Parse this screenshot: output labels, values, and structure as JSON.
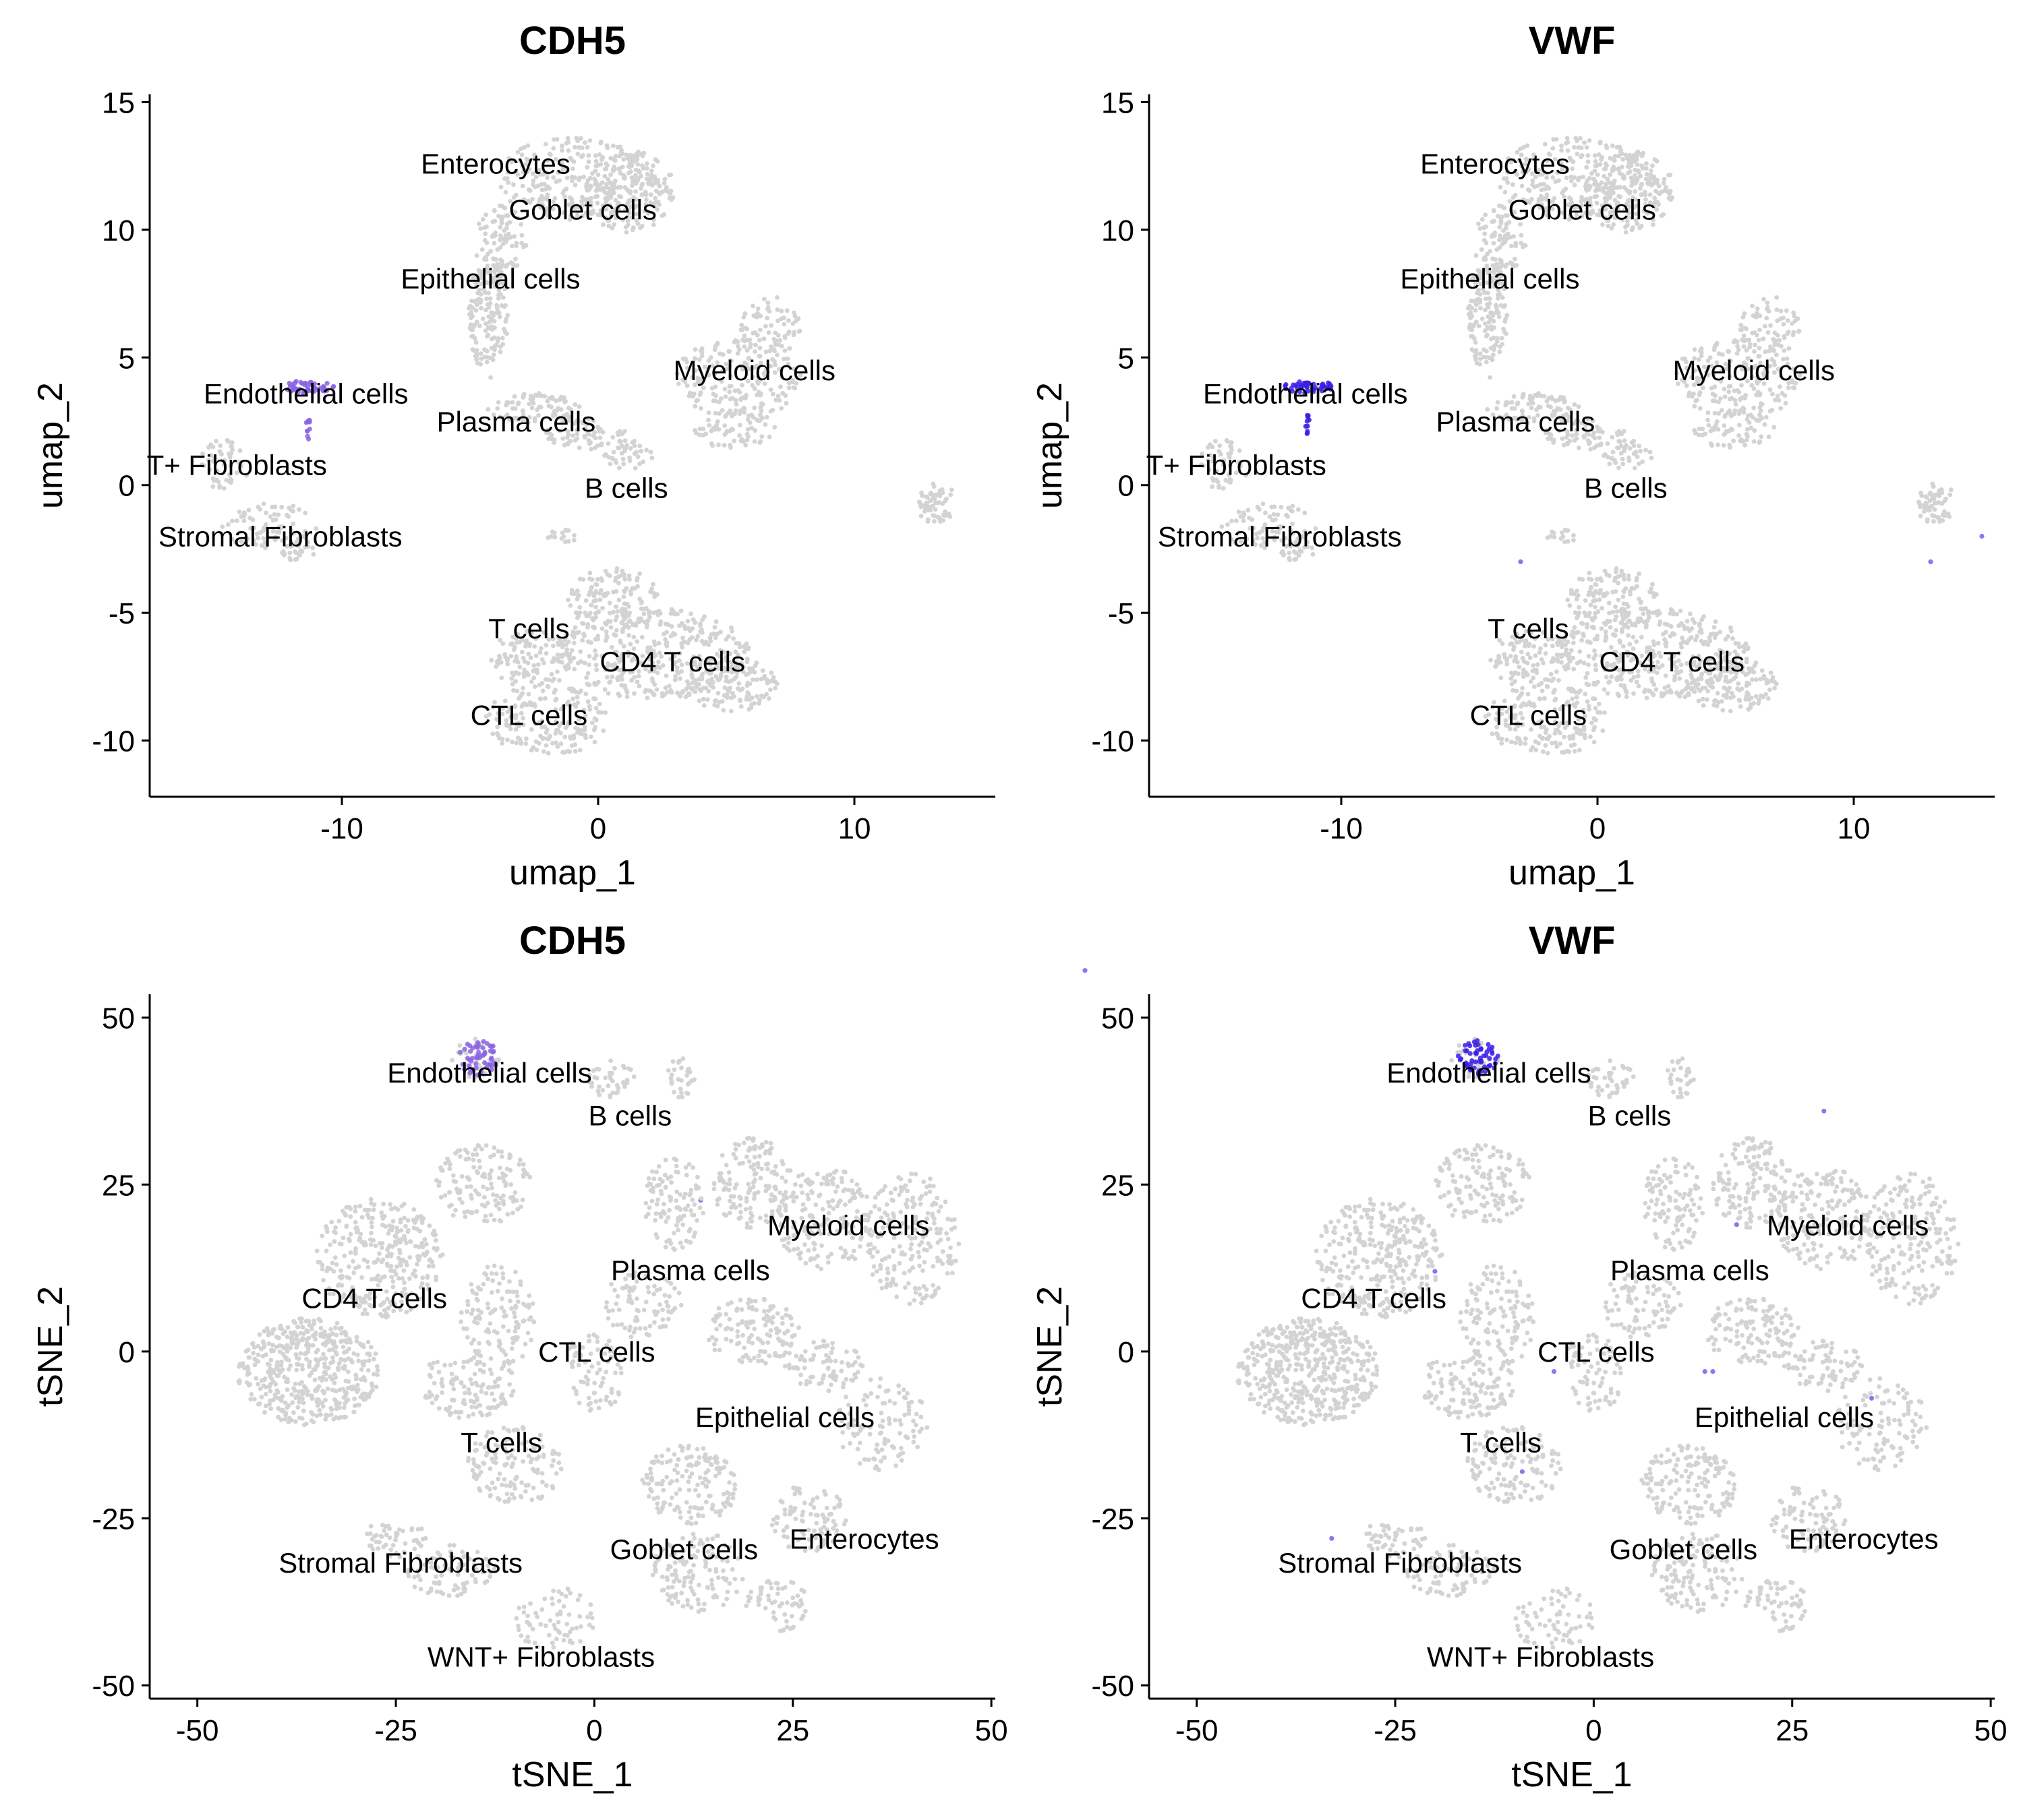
{
  "chart_data": [
    {
      "type": "scatter",
      "title": "CDH5",
      "xlabel": "umap_1",
      "ylabel": "umap_2",
      "xlim": [
        -17.5,
        15.5
      ],
      "ylim": [
        -12.2,
        15.3
      ],
      "xticks": [
        -10,
        0,
        10
      ],
      "yticks": [
        -10,
        -5,
        0,
        5,
        10,
        15
      ],
      "xtick_labels": [
        "-10",
        "0",
        "10"
      ],
      "ytick_labels": [
        "-10",
        "-5",
        "0",
        "5",
        "10",
        "15"
      ],
      "labels": [
        {
          "text": "Enterocytes",
          "x": -4.0,
          "y": 12.6
        },
        {
          "text": "Goblet cells",
          "x": -0.6,
          "y": 10.8
        },
        {
          "text": "Epithelial cells",
          "x": -4.2,
          "y": 8.1
        },
        {
          "text": "Myeloid cells",
          "x": 6.1,
          "y": 4.5
        },
        {
          "text": "Endothelial cells",
          "x": -11.4,
          "y": 3.6
        },
        {
          "text": "Plasma cells",
          "x": -3.2,
          "y": 2.5
        },
        {
          "text": "T+ Fibroblasts",
          "x": -14.1,
          "y": 0.8
        },
        {
          "text": "B cells",
          "x": 1.1,
          "y": -0.1
        },
        {
          "text": "Stromal Fibroblasts",
          "x": -12.4,
          "y": -2.0
        },
        {
          "text": "T cells",
          "x": -2.7,
          "y": -5.6
        },
        {
          "text": "CD4 T cells",
          "x": 2.9,
          "y": -6.9
        },
        {
          "text": "CTL cells",
          "x": -2.7,
          "y": -9.0
        }
      ],
      "expression": {
        "marker_cluster": "Endothelial cells",
        "highlight_color": "#8a63e3",
        "background_color": "#d3d3d3"
      }
    },
    {
      "type": "scatter",
      "title": "VWF",
      "xlabel": "umap_1",
      "ylabel": "umap_2",
      "xlim": [
        -17.5,
        15.5
      ],
      "ylim": [
        -12.2,
        15.3
      ],
      "xticks": [
        -10,
        0,
        10
      ],
      "yticks": [
        -10,
        -5,
        0,
        5,
        10,
        15
      ],
      "xtick_labels": [
        "-10",
        "0",
        "10"
      ],
      "ytick_labels": [
        "-10",
        "-5",
        "0",
        "5",
        "10",
        "15"
      ],
      "labels": [
        {
          "text": "Enterocytes",
          "x": -4.0,
          "y": 12.6
        },
        {
          "text": "Goblet cells",
          "x": -0.6,
          "y": 10.8
        },
        {
          "text": "Epithelial cells",
          "x": -4.2,
          "y": 8.1
        },
        {
          "text": "Myeloid cells",
          "x": 6.1,
          "y": 4.5
        },
        {
          "text": "Endothelial cells",
          "x": -11.4,
          "y": 3.6
        },
        {
          "text": "Plasma cells",
          "x": -3.2,
          "y": 2.5
        },
        {
          "text": "T+ Fibroblasts",
          "x": -14.1,
          "y": 0.8
        },
        {
          "text": "B cells",
          "x": 1.1,
          "y": -0.1
        },
        {
          "text": "Stromal Fibroblasts",
          "x": -12.4,
          "y": -2.0
        },
        {
          "text": "T cells",
          "x": -2.7,
          "y": -5.6
        },
        {
          "text": "CD4 T cells",
          "x": 2.9,
          "y": -6.9
        },
        {
          "text": "CTL cells",
          "x": -2.7,
          "y": -9.0
        }
      ],
      "expression": {
        "marker_cluster": "Endothelial cells",
        "highlight_color": "#3a1fe6",
        "background_color": "#d3d3d3"
      }
    },
    {
      "type": "scatter",
      "title": "CDH5",
      "xlabel": "tSNE_1",
      "ylabel": "tSNE_2",
      "xlim": [
        -56,
        50.5
      ],
      "ylim": [
        -52,
        53.5
      ],
      "xticks": [
        -50,
        -25,
        0,
        25,
        50
      ],
      "yticks": [
        -50,
        -25,
        0,
        25,
        50
      ],
      "xtick_labels": [
        "-50",
        "-25",
        "0",
        "25",
        "50"
      ],
      "ytick_labels": [
        "-50",
        "-25",
        "0",
        "25",
        "50"
      ],
      "labels": [
        {
          "text": "Endothelial cells",
          "x": -13.2,
          "y": 41.8
        },
        {
          "text": "B cells",
          "x": 4.5,
          "y": 35.4
        },
        {
          "text": "Myeloid cells",
          "x": 32.0,
          "y": 18.9
        },
        {
          "text": "Plasma cells",
          "x": 12.1,
          "y": 12.2
        },
        {
          "text": "CD4 T cells",
          "x": -27.7,
          "y": 8.0
        },
        {
          "text": "CTL cells",
          "x": 0.3,
          "y": 0.0
        },
        {
          "text": "Epithelial cells",
          "x": 24.0,
          "y": -9.8
        },
        {
          "text": "T cells",
          "x": -11.7,
          "y": -13.6
        },
        {
          "text": "Stromal Fibroblasts",
          "x": -24.4,
          "y": -31.6
        },
        {
          "text": "Goblet cells",
          "x": 11.3,
          "y": -29.6
        },
        {
          "text": "Enterocytes",
          "x": 34.0,
          "y": -28.0
        },
        {
          "text": "WNT+ Fibroblasts",
          "x": -6.7,
          "y": -45.7
        }
      ],
      "expression": {
        "marker_cluster": "Endothelial cells",
        "highlight_color": "#8a63e3",
        "background_color": "#d3d3d3"
      }
    },
    {
      "type": "scatter",
      "title": "VWF",
      "xlabel": "tSNE_1",
      "ylabel": "tSNE_2",
      "xlim": [
        -56,
        50.5
      ],
      "ylim": [
        -52,
        53.5
      ],
      "xticks": [
        -50,
        -25,
        0,
        25,
        50
      ],
      "yticks": [
        -50,
        -25,
        0,
        25,
        50
      ],
      "xtick_labels": [
        "-50",
        "-25",
        "0",
        "25",
        "50"
      ],
      "ytick_labels": [
        "-50",
        "-25",
        "0",
        "25",
        "50"
      ],
      "labels": [
        {
          "text": "Endothelial cells",
          "x": -13.2,
          "y": 41.8
        },
        {
          "text": "B cells",
          "x": 4.5,
          "y": 35.4
        },
        {
          "text": "Myeloid cells",
          "x": 32.0,
          "y": 18.9
        },
        {
          "text": "Plasma cells",
          "x": 12.1,
          "y": 12.2
        },
        {
          "text": "CD4 T cells",
          "x": -27.7,
          "y": 8.0
        },
        {
          "text": "CTL cells",
          "x": 0.3,
          "y": 0.0
        },
        {
          "text": "Epithelial cells",
          "x": 24.0,
          "y": -9.8
        },
        {
          "text": "T cells",
          "x": -11.7,
          "y": -13.6
        },
        {
          "text": "Stromal Fibroblasts",
          "x": -24.4,
          "y": -31.6
        },
        {
          "text": "Goblet cells",
          "x": 11.3,
          "y": -29.6
        },
        {
          "text": "Enterocytes",
          "x": 34.0,
          "y": -28.0
        },
        {
          "text": "WNT+ Fibroblasts",
          "x": -6.7,
          "y": -45.7
        }
      ],
      "expression": {
        "marker_cluster": "Endothelial cells",
        "highlight_color": "#3a1fe6",
        "background_color": "#d3d3d3"
      }
    }
  ]
}
